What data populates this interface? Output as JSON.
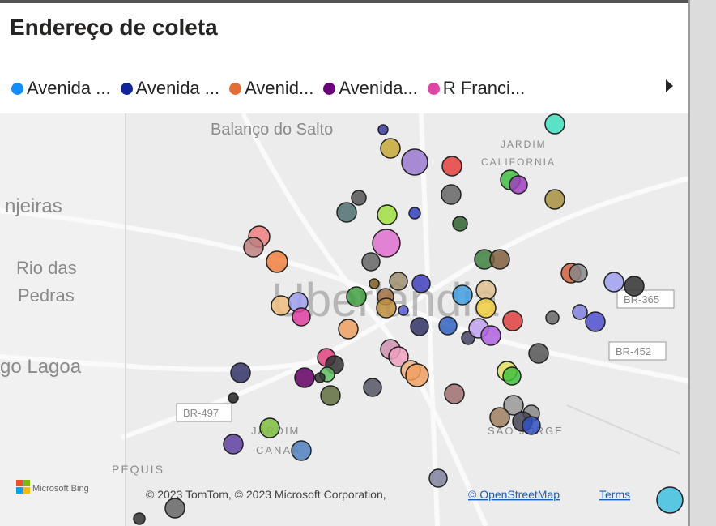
{
  "title": "Endereço de coleta",
  "legend": [
    {
      "label": "Avenida ...",
      "color": "#118dff"
    },
    {
      "label": "Avenida ...",
      "color": "#12239e"
    },
    {
      "label": "Avenid...",
      "color": "#e66c37"
    },
    {
      "label": "Avenida...",
      "color": "#6b007b"
    },
    {
      "label": "R Franci...",
      "color": "#e044a7"
    }
  ],
  "map_labels": [
    "Balanço do Salto",
    "JARDIM",
    "CALIFORNIA",
    "njeiras",
    "Rio das",
    "Pedras",
    "Uberlândia",
    "go Lagoa",
    "BR-365",
    "BR-452",
    "BR-497",
    "JARDIM",
    "CANAÃ",
    "PEQUIS",
    "SÃO JORGE"
  ],
  "footer": {
    "brand": "Microsoft Bing",
    "copyright": "© 2023 TomTom, © 2023 Microsoft Corporation,",
    "osm": "© OpenStreetMap",
    "terms": "Terms"
  }
}
